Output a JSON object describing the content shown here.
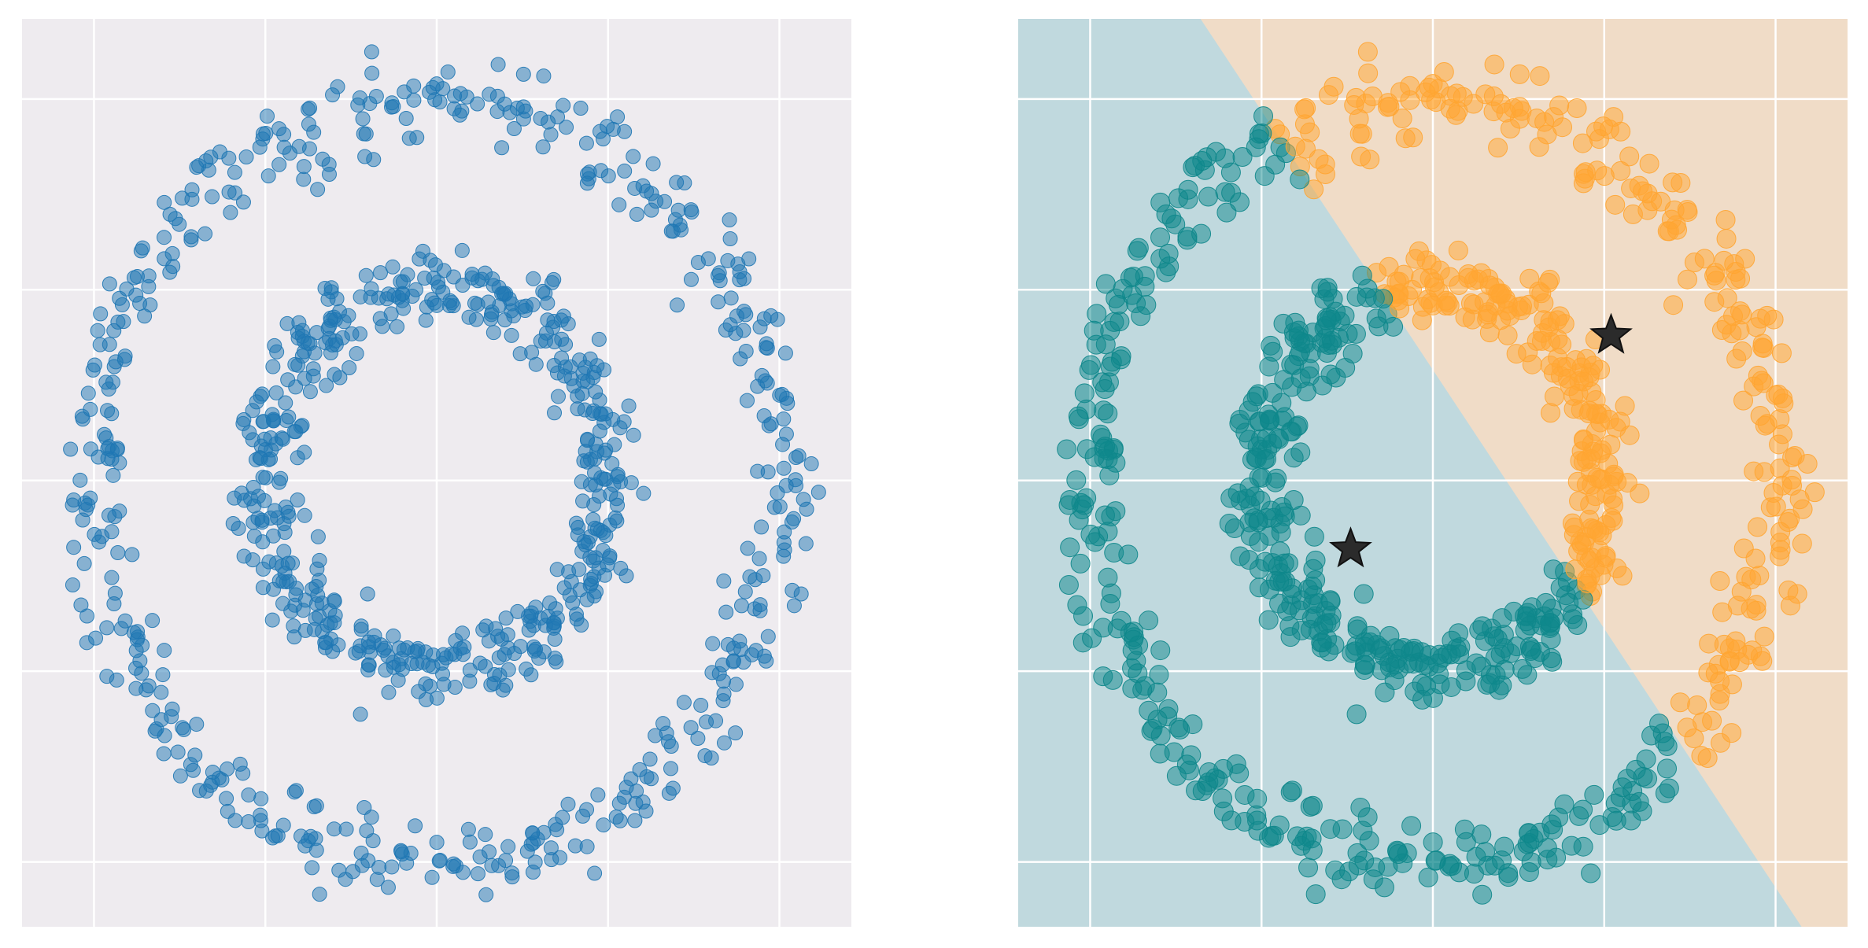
{
  "chart_data": [
    {
      "type": "scatter",
      "title": "",
      "xlabel": "",
      "ylabel": "",
      "xlim": [
        -1.21,
        1.21
      ],
      "ylim": [
        -1.17,
        1.21
      ],
      "x_gridlines": [
        -1.0,
        -0.5,
        0.0,
        0.5,
        1.0
      ],
      "y_gridlines": [
        -1.0,
        -0.5,
        0.0,
        0.5,
        1.0
      ],
      "grid": true,
      "background": "#eeebef",
      "point_color": "#1f77b4",
      "point_alpha": 0.5,
      "series": [
        {
          "shape": "ring",
          "center": [
            0.0,
            0.0
          ],
          "radius": 1.0,
          "count": 500,
          "noise": 0.05
        },
        {
          "shape": "ring",
          "center": [
            0.0,
            0.0
          ],
          "radius": 0.5,
          "count": 500,
          "noise": 0.05
        }
      ]
    },
    {
      "type": "scatter",
      "title": "",
      "xlabel": "",
      "ylabel": "",
      "xlim": [
        -1.21,
        1.21
      ],
      "ylim": [
        -1.17,
        1.21
      ],
      "x_gridlines": [
        -1.0,
        -0.5,
        0.0,
        0.5,
        1.0
      ],
      "y_gridlines": [
        -1.0,
        -0.5,
        0.0,
        0.5,
        1.0
      ],
      "grid": true,
      "centroids": [
        {
          "x": -0.24,
          "y": -0.18
        },
        {
          "x": 0.52,
          "y": 0.38
        }
      ],
      "regions": [
        {
          "cluster": 0,
          "color": "#c0d9de"
        },
        {
          "cluster": 1,
          "color": "#f0dcc7"
        }
      ],
      "clusters": [
        {
          "cluster": 0,
          "color": "#0e878b",
          "alpha": 0.5
        },
        {
          "cluster": 1,
          "color": "#ffa532",
          "alpha": 0.5
        }
      ],
      "centroid_marker": "star",
      "centroid_color": "#2b2b2b",
      "series": [
        {
          "shape": "ring",
          "center": [
            0.0,
            0.0
          ],
          "radius": 1.0,
          "count": 500,
          "noise": 0.05
        },
        {
          "shape": "ring",
          "center": [
            0.0,
            0.0
          ],
          "radius": 0.5,
          "count": 500,
          "noise": 0.05
        }
      ]
    }
  ]
}
